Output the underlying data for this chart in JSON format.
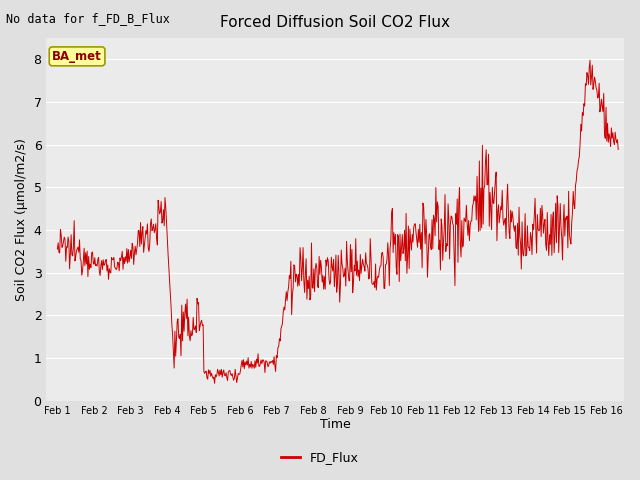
{
  "title": "Forced Diffusion Soil CO2 Flux",
  "top_left_text": "No data for f_FD_B_Flux",
  "xlabel": "Time",
  "ylabel": "Soil CO2 Flux (μmol/m2/s)",
  "ylim": [
    0.0,
    8.5
  ],
  "yticks": [
    0.0,
    1.0,
    2.0,
    3.0,
    4.0,
    5.0,
    6.0,
    7.0,
    8.0
  ],
  "line_color": "#cc0000",
  "legend_label": "FD_Flux",
  "fig_bg_color": "#e0e0e0",
  "plot_bg_color": "#ebebeb",
  "grid_color": "#ffffff",
  "ba_met_box_color": "#ffff99",
  "ba_met_text_color": "#8b0000",
  "ba_met_edge_color": "#999900",
  "xtick_labels": [
    "Feb 1",
    "Feb 2",
    "Feb 3",
    "Feb 4",
    "Feb 5",
    "Feb 6",
    "Feb 7",
    "Feb 8",
    "Feb 9",
    "Feb 10",
    "Feb 11",
    "Feb 12",
    "Feb 13",
    "Feb 14",
    "Feb 15",
    "Feb 16"
  ],
  "n_days": 16,
  "pts_per_day": 48
}
